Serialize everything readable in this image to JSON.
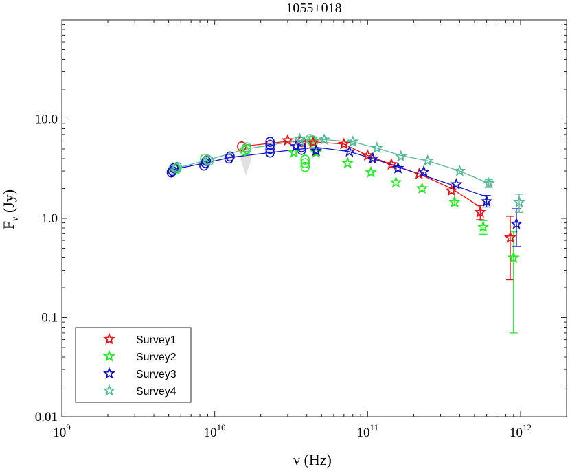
{
  "chart_data": {
    "type": "scatter",
    "title": "1055+018",
    "xlabel": "ν (Hz)",
    "ylabel": "F_ν (Jy)",
    "xscale": "log",
    "yscale": "log",
    "xlim": [
      1000000000.0,
      2000000000000.0
    ],
    "ylim": [
      0.01,
      100
    ],
    "x_ticks": [
      {
        "value": 1000000000.0,
        "base": "10",
        "exp": "9"
      },
      {
        "value": 10000000000.0,
        "base": "10",
        "exp": "10"
      },
      {
        "value": 100000000000.0,
        "base": "10",
        "exp": "11"
      },
      {
        "value": 1000000000000.0,
        "base": "10",
        "exp": "12"
      }
    ],
    "y_ticks": [
      {
        "value": 0.01,
        "label": "0.01"
      },
      {
        "value": 0.1,
        "label": "0.1"
      },
      {
        "value": 1,
        "label": "1.0"
      },
      {
        "value": 10,
        "label": "10.0"
      }
    ],
    "legend_position": "bottom-left",
    "series": [
      {
        "name": "Survey1",
        "color": "#ee1111",
        "stars": [
          {
            "x": 30000000000.0,
            "y": 6.1
          },
          {
            "x": 44000000000.0,
            "y": 5.8
          },
          {
            "x": 70000000000.0,
            "y": 5.6
          },
          {
            "x": 100000000000.0,
            "y": 4.3
          },
          {
            "x": 143000000000.0,
            "y": 3.5
          },
          {
            "x": 217000000000.0,
            "y": 2.8
          },
          {
            "x": 353000000000.0,
            "y": 1.9
          },
          {
            "x": 545000000000.0,
            "y": 1.15
          },
          {
            "x": 857000000000.0,
            "y": 0.64
          }
        ],
        "errors": [
          {
            "x": 545000000000.0,
            "lo": 0.97,
            "hi": 1.35
          },
          {
            "x": 857000000000.0,
            "lo": 0.24,
            "hi": 1.05
          }
        ],
        "line": [
          {
            "x": 15000000000.0,
            "y": 5.3
          },
          {
            "x": 28000000000.0,
            "y": 5.9
          },
          {
            "x": 44000000000.0,
            "y": 5.9
          },
          {
            "x": 70000000000.0,
            "y": 5.6
          },
          {
            "x": 100000000000.0,
            "y": 4.3
          },
          {
            "x": 143000000000.0,
            "y": 3.5
          },
          {
            "x": 217000000000.0,
            "y": 2.8
          },
          {
            "x": 353000000000.0,
            "y": 2.0
          },
          {
            "x": 545000000000.0,
            "y": 1.3
          }
        ],
        "circles": [
          {
            "x": 15000000000.0,
            "y": 5.3
          },
          {
            "x": 37000000000.0,
            "y": 5.9
          }
        ]
      },
      {
        "name": "Survey2",
        "color": "#22ee22",
        "stars": [
          {
            "x": 33000000000.0,
            "y": 4.6
          },
          {
            "x": 46000000000.0,
            "y": 4.6
          },
          {
            "x": 74000000000.0,
            "y": 3.6
          },
          {
            "x": 105000000000.0,
            "y": 2.9
          },
          {
            "x": 153000000000.0,
            "y": 2.3
          },
          {
            "x": 227000000000.0,
            "y": 2.0
          },
          {
            "x": 370000000000.0,
            "y": 1.45
          },
          {
            "x": 570000000000.0,
            "y": 0.82
          },
          {
            "x": 900000000000.0,
            "y": 0.4
          }
        ],
        "errors": [
          {
            "x": 370000000000.0,
            "lo": 1.35,
            "hi": 1.6
          },
          {
            "x": 570000000000.0,
            "lo": 0.69,
            "hi": 0.95
          },
          {
            "x": 900000000000.0,
            "lo": 0.07,
            "hi": 0.73
          }
        ],
        "line": [],
        "circles": [
          {
            "x": 5500000000.0,
            "y": 3.2
          },
          {
            "x": 5600000000.0,
            "y": 3.1
          },
          {
            "x": 8600000000.0,
            "y": 4.0
          },
          {
            "x": 8800000000.0,
            "y": 3.8
          },
          {
            "x": 15700000000.0,
            "y": 4.8
          },
          {
            "x": 16200000000.0,
            "y": 5.0
          },
          {
            "x": 39000000000.0,
            "y": 3.3
          },
          {
            "x": 39000000000.0,
            "y": 3.6
          },
          {
            "x": 39000000000.0,
            "y": 3.9
          },
          {
            "x": 43000000000.0,
            "y": 6.1
          },
          {
            "x": 44000000000.0,
            "y": 5.7
          }
        ]
      },
      {
        "name": "Survey3",
        "color": "#1111cc",
        "stars": [
          {
            "x": 34000000000.0,
            "y": 5.3
          },
          {
            "x": 46000000000.0,
            "y": 4.8
          },
          {
            "x": 76000000000.0,
            "y": 4.7
          },
          {
            "x": 108000000000.0,
            "y": 4.0
          },
          {
            "x": 158000000000.0,
            "y": 3.2
          },
          {
            "x": 233000000000.0,
            "y": 2.95
          },
          {
            "x": 380000000000.0,
            "y": 2.2
          },
          {
            "x": 600000000000.0,
            "y": 1.48
          },
          {
            "x": 940000000000.0,
            "y": 0.88
          }
        ],
        "errors": [
          {
            "x": 600000000000.0,
            "lo": 1.3,
            "hi": 1.7
          },
          {
            "x": 940000000000.0,
            "lo": 0.52,
            "hi": 1.25
          }
        ],
        "line": [
          {
            "x": 5300000000.0,
            "y": 3.1
          },
          {
            "x": 8600000000.0,
            "y": 3.6
          },
          {
            "x": 12500000000.0,
            "y": 4.1
          },
          {
            "x": 23000000000.0,
            "y": 4.6
          },
          {
            "x": 37000000000.0,
            "y": 5.0
          },
          {
            "x": 46000000000.0,
            "y": 5.2
          },
          {
            "x": 76000000000.0,
            "y": 4.7
          },
          {
            "x": 108000000000.0,
            "y": 4.0
          },
          {
            "x": 158000000000.0,
            "y": 3.3
          },
          {
            "x": 233000000000.0,
            "y": 2.7
          },
          {
            "x": 380000000000.0,
            "y": 2.1
          },
          {
            "x": 600000000000.0,
            "y": 1.65
          }
        ],
        "circles": [
          {
            "x": 5200000000.0,
            "y": 2.9
          },
          {
            "x": 5300000000.0,
            "y": 3.0
          },
          {
            "x": 5400000000.0,
            "y": 3.2
          },
          {
            "x": 8500000000.0,
            "y": 3.4
          },
          {
            "x": 8700000000.0,
            "y": 3.6
          },
          {
            "x": 8800000000.0,
            "y": 3.8
          },
          {
            "x": 12400000000.0,
            "y": 4.0
          },
          {
            "x": 12600000000.0,
            "y": 4.2
          },
          {
            "x": 23000000000.0,
            "y": 4.6
          },
          {
            "x": 23000000000.0,
            "y": 5.0
          },
          {
            "x": 23000000000.0,
            "y": 5.5
          },
          {
            "x": 23000000000.0,
            "y": 5.9
          },
          {
            "x": 37000000000.0,
            "y": 4.9
          },
          {
            "x": 37000000000.0,
            "y": 5.2
          }
        ]
      },
      {
        "name": "Survey4",
        "color": "#55bb99",
        "stars": [
          {
            "x": 36000000000.0,
            "y": 6.3
          },
          {
            "x": 52000000000.0,
            "y": 6.2
          },
          {
            "x": 80000000000.0,
            "y": 5.9
          },
          {
            "x": 115000000000.0,
            "y": 5.1
          },
          {
            "x": 165000000000.0,
            "y": 4.2
          },
          {
            "x": 247000000000.0,
            "y": 3.8
          },
          {
            "x": 400000000000.0,
            "y": 3.0
          },
          {
            "x": 620000000000.0,
            "y": 2.25
          },
          {
            "x": 980000000000.0,
            "y": 1.45
          }
        ],
        "errors": [
          {
            "x": 620000000000.0,
            "lo": 2.05,
            "hi": 2.45
          },
          {
            "x": 980000000000.0,
            "lo": 1.15,
            "hi": 1.75
          }
        ],
        "line": [
          {
            "x": 5600000000.0,
            "y": 3.2
          },
          {
            "x": 8600000000.0,
            "y": 3.8
          },
          {
            "x": 16000000000.0,
            "y": 5.0
          },
          {
            "x": 36000000000.0,
            "y": 6.1
          },
          {
            "x": 52000000000.0,
            "y": 6.2
          },
          {
            "x": 80000000000.0,
            "y": 5.9
          },
          {
            "x": 115000000000.0,
            "y": 5.1
          },
          {
            "x": 165000000000.0,
            "y": 4.3
          },
          {
            "x": 247000000000.0,
            "y": 3.8
          },
          {
            "x": 400000000000.0,
            "y": 3.0
          },
          {
            "x": 620000000000.0,
            "y": 2.25
          }
        ],
        "circles": [
          {
            "x": 5600000000.0,
            "y": 3.2
          },
          {
            "x": 5700000000.0,
            "y": 3.3
          },
          {
            "x": 9000000000.0,
            "y": 3.9
          },
          {
            "x": 9200000000.0,
            "y": 3.8
          },
          {
            "x": 16200000000.0,
            "y": 5.2
          },
          {
            "x": 36000000000.0,
            "y": 6.0
          },
          {
            "x": 42000000000.0,
            "y": 6.3
          },
          {
            "x": 44000000000.0,
            "y": 6.1
          }
        ]
      }
    ],
    "variability_bands": [
      {
        "x": 5300000000.0,
        "lo": 2.6,
        "hi": 3.8
      },
      {
        "x": 8700000000.0,
        "lo": 3.1,
        "hi": 4.5
      },
      {
        "x": 12500000000.0,
        "lo": 3.7,
        "hi": 4.6
      },
      {
        "x": 16000000000.0,
        "lo": 2.7,
        "hi": 5.8
      },
      {
        "x": 23000000000.0,
        "lo": 4.3,
        "hi": 6.4
      },
      {
        "x": 37000000000.0,
        "lo": 4.5,
        "hi": 6.4
      },
      {
        "x": 43000000000.0,
        "lo": 5.0,
        "hi": 6.6
      }
    ]
  }
}
